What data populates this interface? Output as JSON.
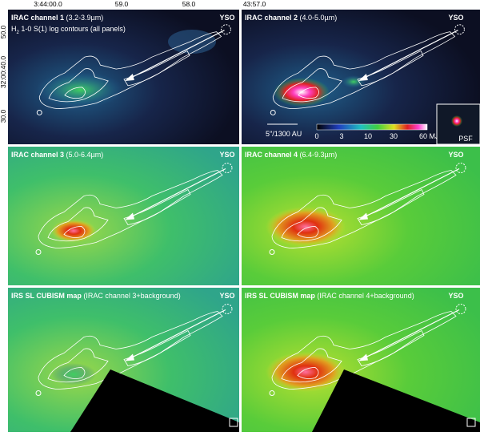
{
  "axes": {
    "top_ticks": [
      "3:44:00.0",
      "59.0",
      "58.0",
      "43:57.0"
    ],
    "left_ticks": [
      "50.0",
      "32:00:40.0",
      "30.0"
    ]
  },
  "panels": [
    {
      "title": "IRAC channel 1",
      "subtitle": "(3.2-3.9µm)",
      "line2": {
        "prefix": "H",
        "subscript": "2",
        "rest": " 1-0 S(1) log contours (all panels)"
      },
      "source": "YSO"
    },
    {
      "title": "IRAC channel 2",
      "subtitle": "(4.0-5.0µm)",
      "source": "YSO",
      "scale_bar": "5″/1300 AU",
      "colorbar": {
        "ticks": [
          "0",
          "3",
          "10",
          "30",
          "60"
        ],
        "unit": "MJy sr",
        "unit_superscript": "-1"
      },
      "inset": "PSF"
    },
    {
      "title": "IRAC channel 3",
      "subtitle": "(5.0-6.4µm)",
      "source": "YSO"
    },
    {
      "title": "IRAC channel 4",
      "subtitle": "(6.4-9.3µm)",
      "source": "YSO"
    },
    {
      "title": "IRS SL CUBISM map",
      "subtitle": "(IRAC channel 3+background)",
      "source": "YSO"
    },
    {
      "title": "IRS SL CUBISM map",
      "subtitle": "(IRAC channel 4+background)",
      "source": "YSO"
    }
  ]
}
